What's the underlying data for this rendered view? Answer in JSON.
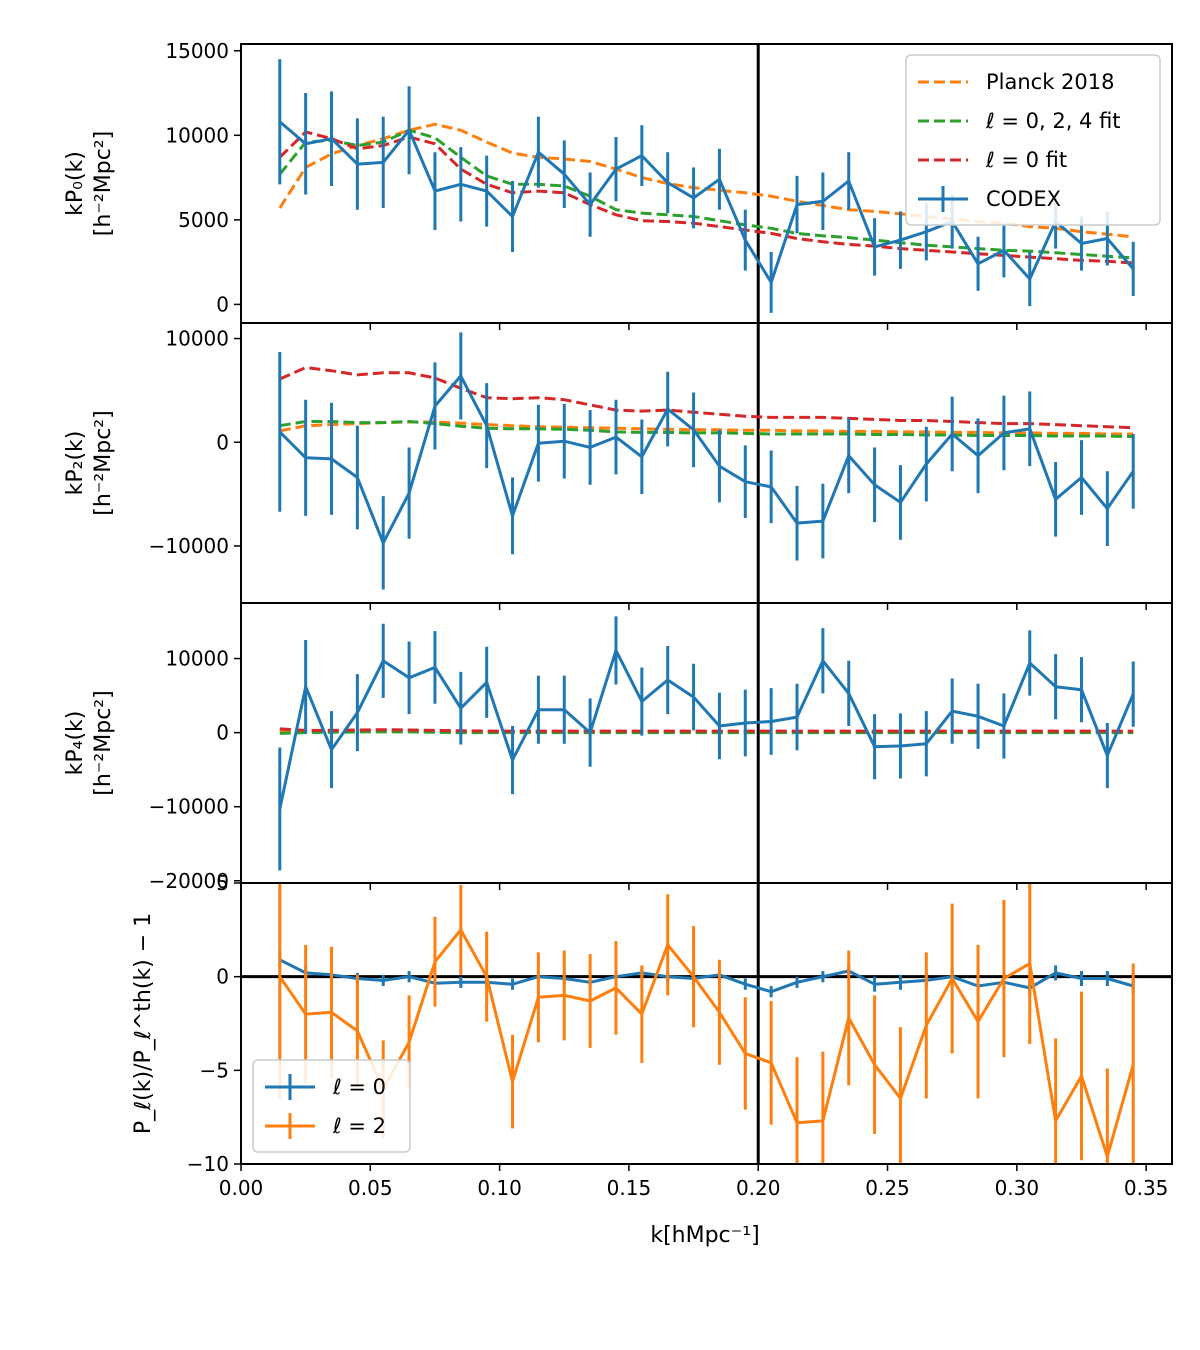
{
  "figure": {
    "xlabel": "k[hMpc⁻¹]",
    "xticks": [
      "0.00",
      "0.05",
      "0.10",
      "0.15",
      "0.20",
      "0.25",
      "0.30",
      "0.35"
    ],
    "xlim": [
      0.0,
      0.36
    ],
    "vline_x": 0.2,
    "colors": {
      "codex": "#1f77b4",
      "planck": "#ff7f0e",
      "fit024": "#2ca02c",
      "fit0": "#d62728",
      "l2": "#ff7f0e"
    }
  },
  "chart_data": [
    {
      "type": "line",
      "name": "P0 panel",
      "ylabel": [
        "kP₀(k)",
        "[h⁻²Mpc²]"
      ],
      "ylim": [
        -1100,
        15400
      ],
      "yticks": [
        0,
        5000,
        10000,
        15000
      ],
      "ytick_labels": [
        "0",
        "5000",
        "10000",
        "15000"
      ],
      "x": [
        0.015,
        0.025,
        0.035,
        0.045,
        0.055,
        0.065,
        0.075,
        0.085,
        0.095,
        0.105,
        0.115,
        0.125,
        0.135,
        0.145,
        0.155,
        0.165,
        0.175,
        0.185,
        0.195,
        0.205,
        0.215,
        0.225,
        0.235,
        0.245,
        0.255,
        0.265,
        0.275,
        0.285,
        0.295,
        0.305,
        0.315,
        0.325,
        0.335,
        0.345
      ],
      "series": [
        {
          "name": "Planck 2018",
          "style": "dashed",
          "color": "#ff7f0e",
          "values": [
            5700,
            8100,
            8900,
            9400,
            9800,
            10300,
            10650,
            10300,
            9600,
            8950,
            8700,
            8600,
            8450,
            8000,
            7500,
            7150,
            6900,
            6750,
            6600,
            6400,
            6100,
            5850,
            5600,
            5500,
            5350,
            5200,
            5050,
            4900,
            4800,
            4600,
            4500,
            4300,
            4150,
            4000
          ]
        },
        {
          "name": "ℓ = 0, 2, 4 fit",
          "style": "dashed",
          "color": "#2ca02c",
          "values": [
            7700,
            9600,
            9700,
            9400,
            9600,
            10300,
            9850,
            8700,
            7600,
            7100,
            7100,
            7000,
            6400,
            5600,
            5400,
            5300,
            5200,
            4950,
            4700,
            4500,
            4200,
            4050,
            3950,
            3800,
            3650,
            3500,
            3400,
            3300,
            3200,
            3150,
            3050,
            2950,
            2850,
            2750
          ]
        },
        {
          "name": "ℓ = 0 fit",
          "style": "dashed",
          "color": "#d62728",
          "values": [
            8700,
            10200,
            9800,
            9200,
            9400,
            9900,
            9500,
            8000,
            7100,
            6600,
            6700,
            6600,
            5900,
            5300,
            4950,
            4900,
            4800,
            4600,
            4400,
            4200,
            3900,
            3700,
            3550,
            3450,
            3300,
            3200,
            3100,
            3000,
            2900,
            2800,
            2700,
            2600,
            2550,
            2450
          ]
        },
        {
          "name": "CODEX",
          "style": "errorbar",
          "color": "#1f77b4",
          "values": [
            10800,
            9500,
            9800,
            8300,
            8400,
            10300,
            6700,
            7100,
            6700,
            5200,
            9000,
            7700,
            5900,
            8000,
            8800,
            7200,
            6300,
            7400,
            3800,
            1300,
            5900,
            6100,
            7300,
            3400,
            3800,
            4300,
            4900,
            2400,
            3200,
            1500,
            4900,
            3600,
            3900,
            2100
          ],
          "errors": [
            3700,
            3000,
            2800,
            2700,
            2700,
            2600,
            2300,
            2200,
            2100,
            2100,
            2100,
            2000,
            1900,
            1900,
            1800,
            1800,
            1800,
            1800,
            1800,
            1800,
            1700,
            1700,
            1700,
            1700,
            1700,
            1700,
            1600,
            1600,
            1600,
            1600,
            1600,
            1600,
            1600,
            1600
          ]
        }
      ],
      "legend": {
        "position": "top-right",
        "entries": [
          "Planck 2018",
          "ℓ = 0, 2, 4 fit",
          "ℓ = 0 fit",
          "CODEX"
        ]
      }
    },
    {
      "type": "line",
      "name": "P2 panel",
      "ylabel": [
        "kP₂(k)",
        "[h⁻²Mpc²]"
      ],
      "ylim": [
        -15500,
        11500
      ],
      "yticks": [
        -10000,
        0,
        10000
      ],
      "ytick_labels": [
        "−10000",
        "0",
        "10000"
      ],
      "series": [
        {
          "name": "Planck 2018",
          "style": "dashed",
          "color": "#ff7f0e",
          "values": [
            1100,
            1600,
            1700,
            1800,
            1900,
            1950,
            1950,
            1850,
            1700,
            1600,
            1500,
            1450,
            1400,
            1350,
            1300,
            1250,
            1200,
            1200,
            1150,
            1150,
            1100,
            1100,
            1050,
            1050,
            1000,
            1000,
            950,
            950,
            900,
            900,
            850,
            850,
            800,
            800
          ]
        },
        {
          "name": "ℓ = 0, 2, 4 fit",
          "style": "dashed",
          "color": "#2ca02c",
          "values": [
            1600,
            2000,
            2000,
            1900,
            1900,
            2000,
            1800,
            1550,
            1350,
            1300,
            1300,
            1250,
            1150,
            1000,
            950,
            950,
            900,
            900,
            850,
            800,
            800,
            800,
            800,
            750,
            750,
            700,
            700,
            650,
            650,
            650,
            600,
            600,
            600,
            550
          ]
        },
        {
          "name": "ℓ = 0 fit",
          "style": "dashed",
          "color": "#d62728",
          "values": [
            6100,
            7200,
            6900,
            6500,
            6700,
            6700,
            6200,
            5200,
            4300,
            4200,
            4300,
            4100,
            3600,
            3100,
            3000,
            3100,
            2900,
            2700,
            2500,
            2400,
            2400,
            2400,
            2300,
            2200,
            2100,
            2100,
            2000,
            1900,
            1800,
            1800,
            1700,
            1600,
            1500,
            1400
          ]
        },
        {
          "name": "CODEX",
          "style": "errorbar",
          "color": "#1f77b4",
          "values": [
            1000,
            -1500,
            -1600,
            -3400,
            -9700,
            -4900,
            3500,
            6400,
            1600,
            -7100,
            -100,
            100,
            -500,
            500,
            -1400,
            3200,
            1200,
            -2300,
            -3800,
            -4300,
            -7800,
            -7600,
            -1300,
            -4100,
            -5800,
            -2100,
            800,
            -1300,
            900,
            1300,
            -5500,
            -3400,
            -6400,
            -2800
          ],
          "errors": [
            7700,
            5600,
            5400,
            5000,
            4500,
            4400,
            4200,
            4200,
            4100,
            3700,
            3700,
            3600,
            3600,
            3600,
            3600,
            3600,
            3600,
            3500,
            3500,
            3500,
            3600,
            3600,
            3600,
            3600,
            3600,
            3600,
            3600,
            3600,
            3600,
            3600,
            3600,
            3600,
            3600,
            3600
          ]
        }
      ]
    },
    {
      "type": "line",
      "name": "P4 panel",
      "ylabel": [
        "kP₄(k)",
        "[h⁻²Mpc²]"
      ],
      "ylim": [
        -20300,
        17500
      ],
      "yticks": [
        -20000,
        -10000,
        0,
        10000
      ],
      "ytick_labels": [
        "−20000",
        "−10000",
        "0",
        "10000"
      ],
      "series": [
        {
          "name": "Planck 2018",
          "style": "dashed",
          "color": "#ff7f0e",
          "values": [
            200,
            200,
            200,
            200,
            200,
            200,
            150,
            150,
            150,
            150,
            150,
            150,
            150,
            150,
            150,
            150,
            150,
            150,
            100,
            100,
            100,
            100,
            100,
            100,
            100,
            100,
            100,
            100,
            100,
            100,
            100,
            100,
            100,
            100
          ]
        },
        {
          "name": "ℓ = 0, 2, 4 fit",
          "style": "dashed",
          "color": "#2ca02c",
          "values": [
            -100,
            0,
            50,
            100,
            100,
            100,
            50,
            0,
            0,
            0,
            0,
            0,
            0,
            0,
            0,
            0,
            0,
            0,
            0,
            0,
            0,
            0,
            0,
            0,
            0,
            0,
            0,
            0,
            0,
            0,
            0,
            0,
            0,
            0
          ]
        },
        {
          "name": "ℓ = 0 fit",
          "style": "dashed",
          "color": "#d62728",
          "values": [
            500,
            300,
            300,
            350,
            400,
            350,
            300,
            250,
            200,
            200,
            200,
            200,
            200,
            200,
            200,
            200,
            200,
            200,
            200,
            200,
            200,
            200,
            200,
            200,
            200,
            200,
            200,
            200,
            200,
            200,
            200,
            200,
            200,
            200
          ]
        },
        {
          "name": "CODEX",
          "style": "errorbar",
          "color": "#1f77b4",
          "values": [
            -10300,
            6200,
            -2300,
            2700,
            9700,
            7400,
            8800,
            3300,
            6800,
            -3700,
            3100,
            3100,
            0,
            11100,
            4200,
            7100,
            4800,
            900,
            1300,
            1500,
            2100,
            9700,
            5300,
            -1900,
            -1800,
            -1500,
            2900,
            2200,
            900,
            9400,
            6200,
            5800,
            -3100,
            5200
          ],
          "errors": [
            8300,
            6300,
            5200,
            5200,
            5000,
            4900,
            4900,
            4900,
            4800,
            4600,
            4600,
            4600,
            4600,
            4600,
            4600,
            4600,
            4500,
            4500,
            4500,
            4500,
            4500,
            4400,
            4400,
            4400,
            4400,
            4400,
            4400,
            4400,
            4400,
            4400,
            4400,
            4400,
            4400,
            4400
          ]
        }
      ]
    },
    {
      "type": "line",
      "name": "ratio panel",
      "ylabel": [
        "P_ℓ(k)/P_ℓ^th(k) − 1"
      ],
      "ylim": [
        -10,
        5
      ],
      "yticks": [
        -10,
        -5,
        0,
        5
      ],
      "ytick_labels": [
        "−10",
        "−5",
        "0",
        "5"
      ],
      "hline_y": 0,
      "series": [
        {
          "name": "ℓ = 0",
          "style": "errorbar",
          "color": "#1f77b4",
          "values": [
            0.9,
            0.2,
            0.1,
            -0.1,
            -0.2,
            0.0,
            -0.35,
            -0.3,
            -0.3,
            -0.4,
            0.0,
            -0.1,
            -0.3,
            0.0,
            0.2,
            0.0,
            -0.1,
            0.1,
            -0.4,
            -0.8,
            -0.3,
            0.0,
            0.3,
            -0.4,
            -0.3,
            -0.2,
            0.0,
            -0.5,
            -0.3,
            -0.6,
            0.2,
            -0.1,
            -0.1,
            -0.5
          ],
          "errors": [
            0.5,
            0.35,
            0.3,
            0.3,
            0.3,
            0.3,
            0.3,
            0.3,
            0.3,
            0.3,
            0.3,
            0.3,
            0.3,
            0.3,
            0.3,
            0.3,
            0.3,
            0.3,
            0.3,
            0.3,
            0.3,
            0.3,
            0.3,
            0.4,
            0.4,
            0.4,
            0.4,
            0.4,
            0.4,
            0.4,
            0.4,
            0.4,
            0.4,
            0.4
          ]
        },
        {
          "name": "ℓ = 2",
          "style": "errorbar",
          "color": "#ff7f0e",
          "values": [
            0.0,
            -2.0,
            -1.9,
            -2.9,
            -6.0,
            -3.5,
            0.8,
            2.5,
            0.0,
            -5.6,
            -1.1,
            -1.0,
            -1.3,
            -0.6,
            -2.0,
            1.7,
            0.0,
            -1.9,
            -4.1,
            -4.6,
            -7.8,
            -7.7,
            -2.2,
            -4.7,
            -6.5,
            -2.6,
            -0.1,
            -2.4,
            -0.1,
            0.7,
            -7.7,
            -5.3,
            -9.6,
            -4.7
          ],
          "errors": [
            6.5,
            3.7,
            3.5,
            3.0,
            2.6,
            2.5,
            2.4,
            2.4,
            2.4,
            2.5,
            2.4,
            2.4,
            2.5,
            2.5,
            2.6,
            2.7,
            2.7,
            2.8,
            3.0,
            3.3,
            3.5,
            3.7,
            3.6,
            3.7,
            3.8,
            3.9,
            4.0,
            4.1,
            4.2,
            4.3,
            4.4,
            4.5,
            4.7,
            5.4
          ]
        }
      ],
      "legend": {
        "position": "bottom-left",
        "entries": [
          "ℓ = 0",
          "ℓ = 2"
        ]
      }
    }
  ]
}
